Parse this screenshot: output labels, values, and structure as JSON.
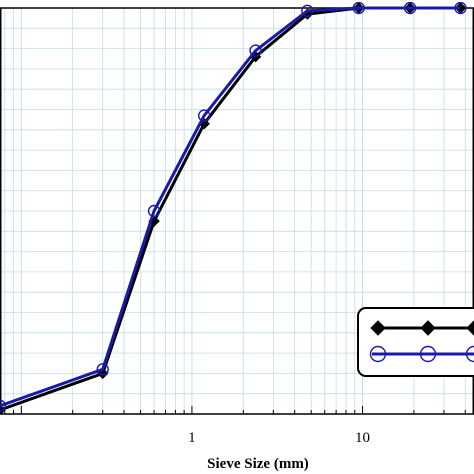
{
  "chart_data": {
    "type": "line",
    "xlabel": "Sieve Size (mm)",
    "ylabel": "",
    "x_scale": "log",
    "xlim": [
      0.075,
      45
    ],
    "ylim": [
      0,
      100
    ],
    "x_tick_labels": [
      {
        "value": 1,
        "label": "1"
      },
      {
        "value": 10,
        "label": "10"
      }
    ],
    "grid": true,
    "legend_position": "bottom-right",
    "series": [
      {
        "color": "#000000",
        "marker": "filled-diamond",
        "x": [
          0.075,
          0.3,
          0.6,
          1.18,
          2.36,
          4.75,
          9.5,
          19,
          37.5
        ],
        "y": [
          1,
          10,
          47.5,
          71.5,
          88,
          98.5,
          100,
          100,
          100
        ]
      },
      {
        "color": "#1a1aa8",
        "marker": "open-circle",
        "x": [
          0.075,
          0.3,
          0.6,
          1.18,
          2.36,
          4.75,
          9.5,
          19,
          37.5
        ],
        "y": [
          2,
          11,
          50,
          73.5,
          89.5,
          99.3,
          100,
          100,
          100
        ]
      }
    ]
  }
}
